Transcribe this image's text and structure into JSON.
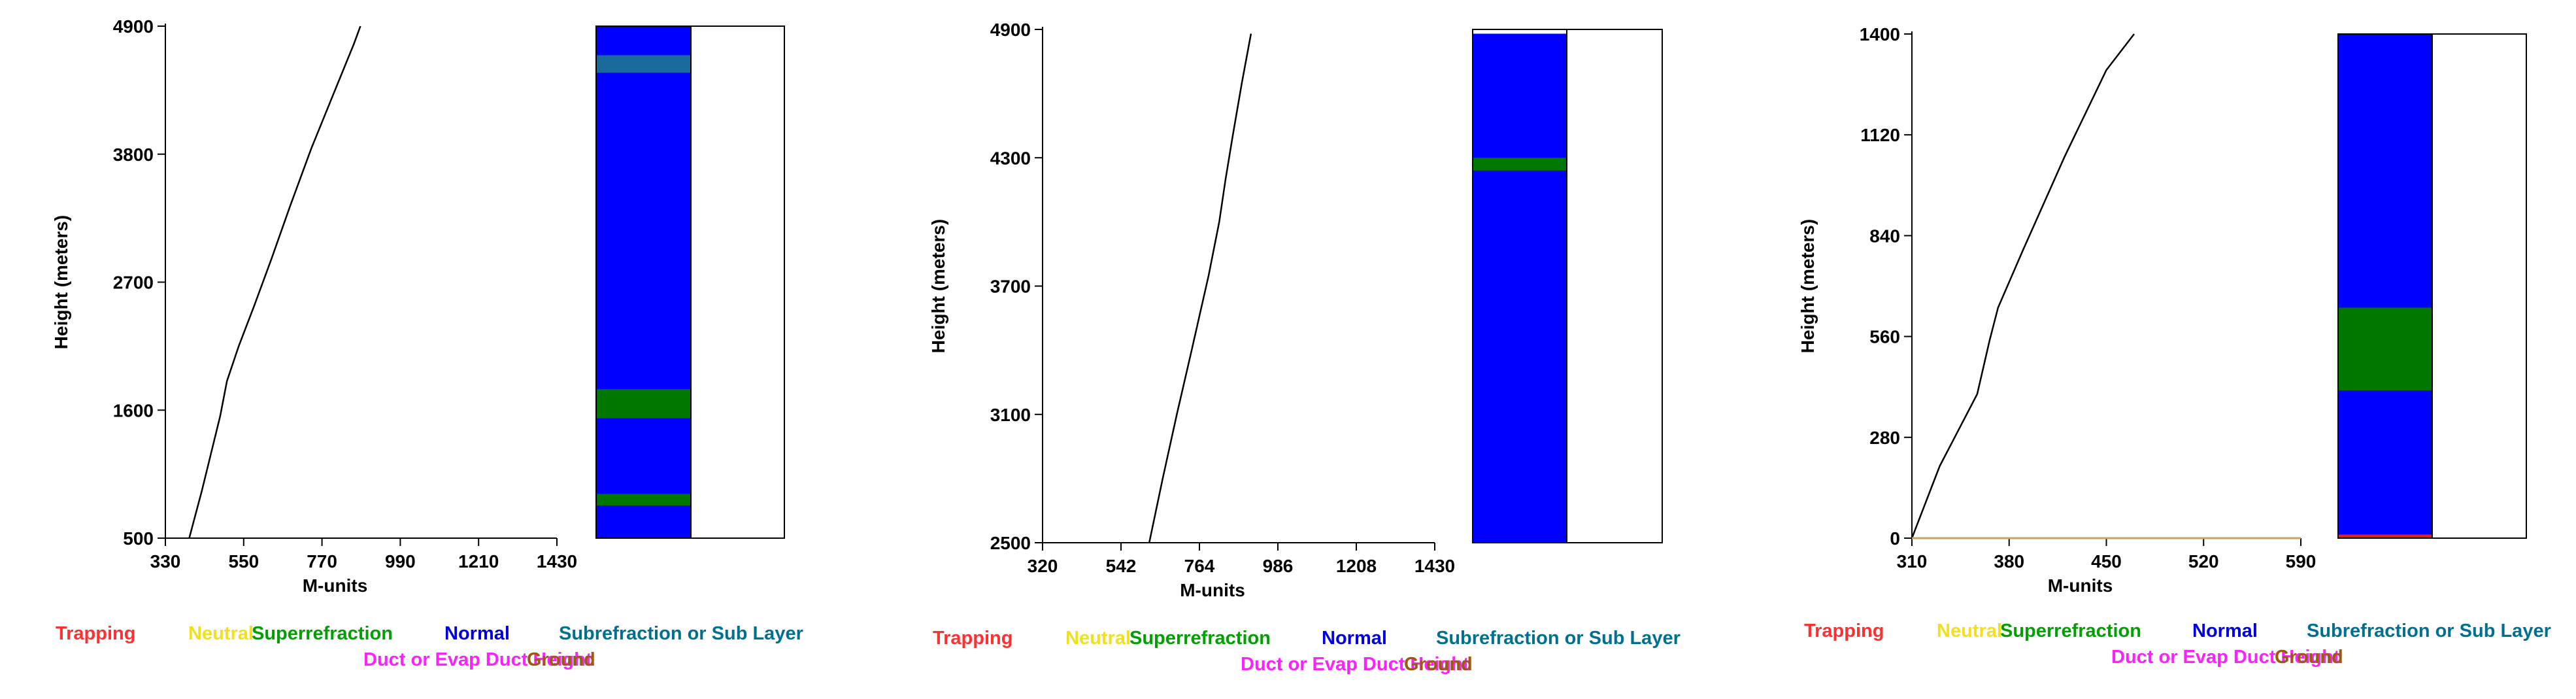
{
  "chart_data": [
    {
      "type": "line",
      "xlabel": "M-units",
      "ylabel": "Height (meters)",
      "xlim": [
        330,
        1430
      ],
      "ylim": [
        500,
        4900
      ],
      "xticks": [
        "330",
        "550",
        "770",
        "990",
        "1210",
        "1430"
      ],
      "yticks": [
        "500",
        "1600",
        "2700",
        "3800",
        "4900"
      ],
      "series": [
        {
          "color": "#000000",
          "x": [
            397,
            410,
            432,
            460,
            484,
            503,
            536,
            580,
            628,
            680,
            740,
            800,
            860,
            878
          ],
          "y": [
            500,
            650,
            900,
            1250,
            1550,
            1850,
            2150,
            2500,
            2900,
            3350,
            3850,
            4300,
            4750,
            4900
          ]
        }
      ],
      "bands": [
        {
          "type": "Normal",
          "from": 500,
          "to": 4900
        },
        {
          "type": "Subrefraction or Sub Layer",
          "from": 4500,
          "to": 4650
        },
        {
          "type": "Superrefraction",
          "from": 1530,
          "to": 1780
        },
        {
          "type": "Superrefraction",
          "from": 780,
          "to": 880
        }
      ]
    },
    {
      "type": "line",
      "xlabel": "M-units",
      "ylabel": "Height (meters)",
      "xlim": [
        320,
        1430
      ],
      "ylim": [
        2500,
        4900
      ],
      "xticks": [
        "320",
        "542",
        "764",
        "986",
        "1208",
        "1430"
      ],
      "yticks": [
        "2500",
        "3100",
        "3700",
        "4300",
        "4900"
      ],
      "series": [
        {
          "color": "#000000",
          "x": [
            622,
            660,
            700,
            742,
            790,
            820,
            838,
            858,
            884,
            910
          ],
          "y": [
            2500,
            2800,
            3100,
            3400,
            3750,
            4000,
            4200,
            4400,
            4650,
            4880
          ]
        }
      ],
      "bands": [
        {
          "type": "Normal",
          "from": 2500,
          "to": 4880
        },
        {
          "type": "Superrefraction",
          "from": 4240,
          "to": 4300
        }
      ]
    },
    {
      "type": "line",
      "xlabel": "M-units",
      "ylabel": "Height (meters)",
      "xlim": [
        310,
        590
      ],
      "ylim": [
        0,
        1400
      ],
      "xticks": [
        "310",
        "380",
        "450",
        "520",
        "590"
      ],
      "yticks": [
        "0",
        "280",
        "560",
        "840",
        "1120",
        "1400"
      ],
      "series": [
        {
          "color": "#000000",
          "x": [
            310,
            330,
            357,
            366,
            372,
            390,
            420,
            450,
            470
          ],
          "y": [
            0,
            200,
            400,
            550,
            640,
            800,
            1060,
            1300,
            1400
          ]
        },
        {
          "color": "#c8a060",
          "x": [
            310,
            590
          ],
          "y": [
            0,
            0
          ]
        }
      ],
      "bands": [
        {
          "type": "Normal",
          "from": 0,
          "to": 1400
        },
        {
          "type": "Superrefraction",
          "from": 410,
          "to": 640
        },
        {
          "type": "Trapping",
          "from": 0,
          "to": 10
        }
      ]
    }
  ],
  "band_colors": {
    "Normal": "#0000ff",
    "Superrefraction": "#007800",
    "Subrefraction or Sub Layer": "#1a6b9c",
    "Trapping": "#e02020"
  },
  "legend": [
    {
      "label": "Trapping",
      "color": "#ff3030"
    },
    {
      "label": "Neutral",
      "color": "#f0e020"
    },
    {
      "label": "Superrefraction",
      "color": "#00a000"
    },
    {
      "label": "Normal",
      "color": "#0000e0"
    },
    {
      "label": "Subrefraction or Sub Layer",
      "color": "#007090"
    },
    {
      "label": "Duct or Evap Duct Height",
      "color": "#ff20ff"
    },
    {
      "label": "Ground",
      "color": "#9a5a10"
    }
  ]
}
